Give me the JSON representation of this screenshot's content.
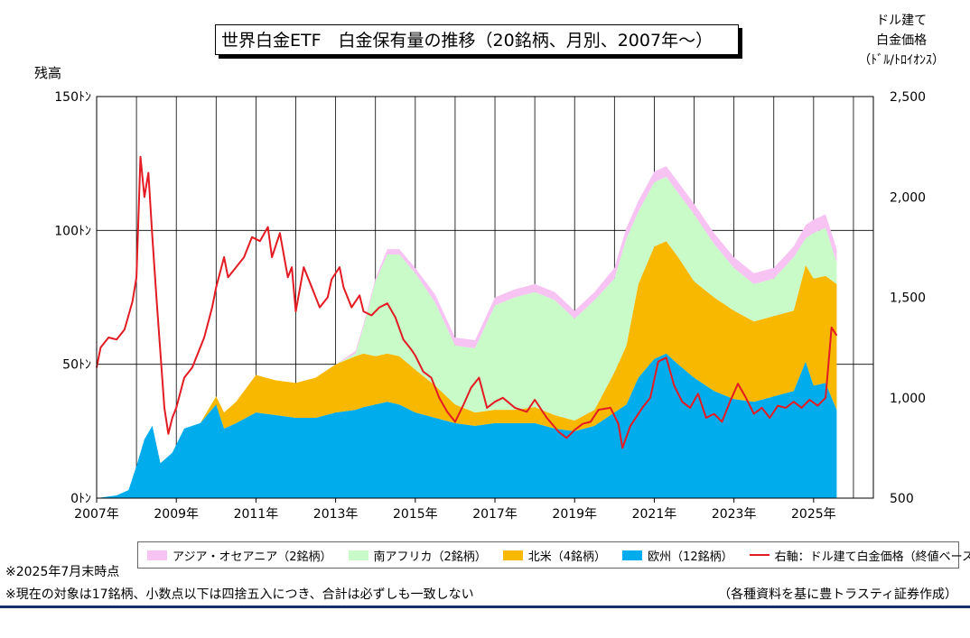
{
  "title": "世界白金ETF　白金保有量の推移（20銘柄、月別、2007年～）",
  "y_left_label": "残高",
  "y_right_label_lines": [
    "ドル建て",
    "白金価格",
    "（ﾄﾞﾙ/ﾄﾛｲｵﾝｽ）"
  ],
  "notes": {
    "note1": "※2025年7月末時点",
    "note2": "※現在の対象は17銘柄、小数点以下は四捨五入につき、合計は必ずしも一致しない",
    "source": "（各種資料を基に豊トラスティ証券作成）"
  },
  "legend": [
    {
      "label": "アジア・オセアニア（2銘柄）",
      "color": "#f6c3f3"
    },
    {
      "label": "南アフリカ（2銘柄）",
      "color": "#c9fbc9"
    },
    {
      "label": "北米（4銘柄）",
      "color": "#f8b800"
    },
    {
      "label": "欧州（12銘柄）",
      "color": "#00acec"
    },
    {
      "label": "右軸：ドル建て白金価格（終値ベース）",
      "color": "#e31b23"
    }
  ],
  "chart_data": {
    "type": "area",
    "stacked": true,
    "x_unit": "year (decimal)",
    "xlim": [
      2007.0,
      2026.5
    ],
    "x_tick_labels": [
      "2007年",
      "2009年",
      "2011年",
      "2013年",
      "2015年",
      "2017年",
      "2019年",
      "2021年",
      "2023年",
      "2025年"
    ],
    "x_ticks": [
      2007,
      2009,
      2011,
      2013,
      2015,
      2017,
      2019,
      2021,
      2023,
      2025
    ],
    "y_left": {
      "lim": [
        0,
        150
      ],
      "ticks": [
        0,
        50,
        100,
        150
      ],
      "tick_labels": [
        "0ﾄﾝ",
        "50ﾄﾝ",
        "100ﾄﾝ",
        "150ﾄﾝ"
      ]
    },
    "y_right": {
      "lim": [
        500,
        2500
      ],
      "ticks": [
        500,
        1000,
        1500,
        2000,
        2500
      ],
      "tick_labels": [
        "500",
        "1,000",
        "1,500",
        "2,000",
        "2,500"
      ]
    },
    "grid": true,
    "x": [
      2007.0,
      2007.5,
      2007.8,
      2008.0,
      2008.2,
      2008.4,
      2008.6,
      2008.9,
      2009.2,
      2009.6,
      2010.0,
      2010.2,
      2010.5,
      2011.0,
      2011.5,
      2012.0,
      2012.5,
      2013.0,
      2013.5,
      2013.7,
      2014.0,
      2014.3,
      2014.6,
      2015.0,
      2015.5,
      2016.0,
      2016.5,
      2017.0,
      2017.5,
      2018.0,
      2018.5,
      2019.0,
      2019.5,
      2020.0,
      2020.3,
      2020.6,
      2021.0,
      2021.3,
      2021.6,
      2022.0,
      2022.5,
      2023.0,
      2023.5,
      2024.0,
      2024.5,
      2024.8,
      2025.0,
      2025.3,
      2025.58
    ],
    "series": [
      {
        "name": "欧州（12銘柄）",
        "color": "#00acec",
        "values": [
          0,
          1,
          3,
          12,
          22,
          27,
          13,
          17,
          26,
          28,
          35,
          26,
          28,
          32,
          31,
          30,
          30,
          32,
          33,
          34,
          35,
          36,
          35,
          32,
          30,
          28,
          27,
          28,
          28,
          28,
          26,
          25,
          27,
          32,
          35,
          45,
          52,
          54,
          50,
          45,
          40,
          37,
          36,
          38,
          40,
          51,
          42,
          43,
          33
        ]
      },
      {
        "name": "北米（4銘柄）",
        "color": "#f8b800",
        "values": [
          0,
          0,
          0,
          0,
          0,
          0,
          0,
          0,
          0,
          0,
          3,
          6,
          8,
          14,
          13,
          13,
          15,
          18,
          20,
          20,
          18,
          18,
          18,
          16,
          12,
          7,
          5,
          5,
          5,
          6,
          5,
          4,
          6,
          15,
          22,
          35,
          42,
          42,
          40,
          36,
          35,
          33,
          30,
          30,
          30,
          36,
          40,
          40,
          47
        ]
      },
      {
        "name": "南アフリカ（2銘柄）",
        "color": "#c9fbc9",
        "values": [
          0,
          0,
          0,
          0,
          0,
          0,
          0,
          0,
          0,
          0,
          0,
          0,
          0,
          0,
          0,
          0,
          0,
          0,
          1,
          10,
          28,
          37,
          38,
          36,
          31,
          22,
          24,
          39,
          42,
          43,
          43,
          38,
          41,
          35,
          40,
          27,
          24,
          24,
          24,
          25,
          20,
          16,
          14,
          14,
          20,
          10,
          17,
          18,
          8
        ]
      },
      {
        "name": "アジア・オセアニア（2銘柄）",
        "color": "#f6c3f3",
        "values": [
          0,
          0,
          0,
          0,
          0,
          0,
          0,
          0,
          0,
          0,
          0,
          0,
          0,
          0,
          0,
          0,
          0,
          0,
          1,
          1,
          1,
          2,
          2,
          2,
          3,
          3,
          3,
          3,
          3,
          3,
          3,
          3,
          3,
          4,
          4,
          4,
          4,
          4,
          4,
          4,
          4,
          4,
          4,
          4,
          4,
          5,
          5,
          5,
          5
        ]
      }
    ],
    "price_series": {
      "name": "右軸：ドル建て白金価格（終値ベース）",
      "color": "#e31b23",
      "axis": "right",
      "x": [
        2007.0,
        2007.1,
        2007.3,
        2007.5,
        2007.7,
        2007.9,
        2008.0,
        2008.1,
        2008.2,
        2008.3,
        2008.4,
        2008.5,
        2008.7,
        2008.8,
        2008.9,
        2009.0,
        2009.2,
        2009.4,
        2009.7,
        2009.9,
        2010.0,
        2010.2,
        2010.3,
        2010.5,
        2010.7,
        2010.9,
        2011.1,
        2011.3,
        2011.4,
        2011.6,
        2011.8,
        2011.9,
        2012.0,
        2012.2,
        2012.4,
        2012.6,
        2012.8,
        2012.9,
        2013.1,
        2013.2,
        2013.4,
        2013.6,
        2013.7,
        2013.9,
        2014.1,
        2014.3,
        2014.5,
        2014.7,
        2014.9,
        2015.0,
        2015.2,
        2015.4,
        2015.6,
        2015.8,
        2016.0,
        2016.2,
        2016.4,
        2016.6,
        2016.8,
        2017.0,
        2017.2,
        2017.5,
        2017.8,
        2018.0,
        2018.3,
        2018.6,
        2018.8,
        2019.0,
        2019.2,
        2019.4,
        2019.6,
        2019.9,
        2020.1,
        2020.2,
        2020.4,
        2020.7,
        2020.9,
        2021.1,
        2021.3,
        2021.5,
        2021.7,
        2021.9,
        2022.1,
        2022.3,
        2022.5,
        2022.7,
        2022.9,
        2023.1,
        2023.3,
        2023.5,
        2023.7,
        2023.9,
        2024.1,
        2024.3,
        2024.5,
        2024.7,
        2024.9,
        2025.1,
        2025.3,
        2025.45,
        2025.58
      ],
      "values": [
        1150,
        1250,
        1300,
        1290,
        1340,
        1480,
        1600,
        2200,
        2000,
        2120,
        1800,
        1500,
        950,
        820,
        900,
        950,
        1100,
        1150,
        1300,
        1450,
        1550,
        1700,
        1600,
        1650,
        1700,
        1800,
        1780,
        1850,
        1700,
        1820,
        1600,
        1650,
        1430,
        1650,
        1550,
        1450,
        1500,
        1590,
        1650,
        1550,
        1450,
        1510,
        1430,
        1410,
        1450,
        1470,
        1400,
        1290,
        1240,
        1210,
        1130,
        1100,
        1000,
        930,
        880,
        960,
        1050,
        1100,
        950,
        980,
        1000,
        950,
        930,
        990,
        900,
        830,
        800,
        840,
        870,
        880,
        940,
        950,
        870,
        750,
        860,
        950,
        1000,
        1180,
        1200,
        1060,
        980,
        950,
        1020,
        900,
        920,
        880,
        980,
        1070,
        1000,
        920,
        950,
        900,
        960,
        950,
        980,
        950,
        990,
        960,
        1000,
        1350,
        1310
      ]
    }
  }
}
